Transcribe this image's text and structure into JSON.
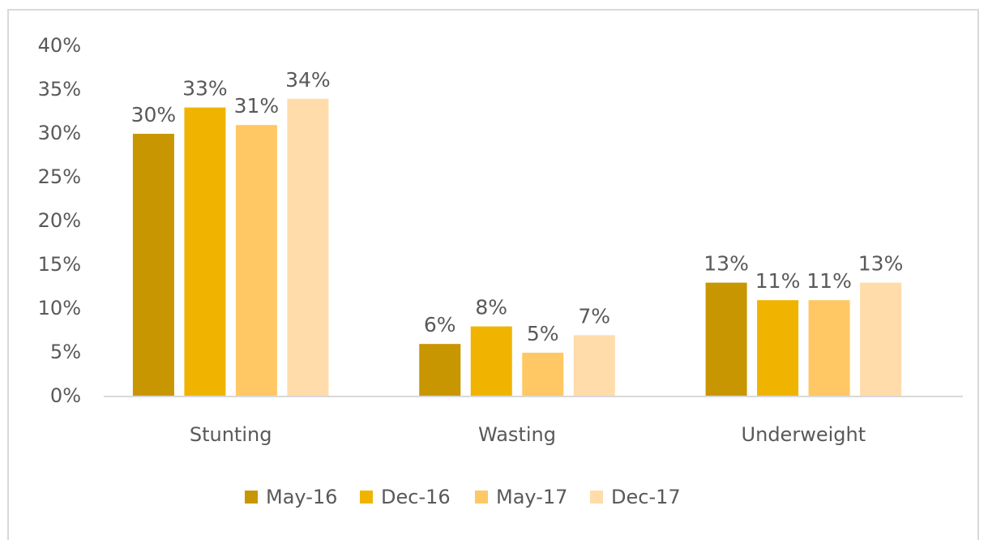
{
  "chart_data": {
    "type": "bar",
    "categories": [
      "Stunting",
      "Wasting",
      "Underweight"
    ],
    "series": [
      {
        "name": "May-16",
        "color": "#c89600",
        "values": [
          30,
          6,
          13
        ],
        "value_labels": [
          "30%",
          "6%",
          "13%"
        ]
      },
      {
        "name": "Dec-16",
        "color": "#f0b400",
        "values": [
          33,
          8,
          11
        ],
        "value_labels": [
          "33%",
          "8%",
          "11%"
        ]
      },
      {
        "name": "May-17",
        "color": "#ffc864",
        "values": [
          31,
          5,
          11
        ],
        "value_labels": [
          "31%",
          "5%",
          "11%"
        ]
      },
      {
        "name": "Dec-17",
        "color": "#ffdcaa",
        "values": [
          34,
          7,
          13
        ],
        "value_labels": [
          "34%",
          "7%",
          "13%"
        ]
      }
    ],
    "ylim": [
      0,
      40
    ],
    "yticks": [
      {
        "value": 0,
        "label": "0%"
      },
      {
        "value": 5,
        "label": "5%"
      },
      {
        "value": 10,
        "label": "10%"
      },
      {
        "value": 15,
        "label": "15%"
      },
      {
        "value": 20,
        "label": "20%"
      },
      {
        "value": 25,
        "label": "25%"
      },
      {
        "value": 30,
        "label": "30%"
      },
      {
        "value": 35,
        "label": "35%"
      },
      {
        "value": 40,
        "label": "40%"
      }
    ],
    "grid": false,
    "legend": "bottom"
  }
}
